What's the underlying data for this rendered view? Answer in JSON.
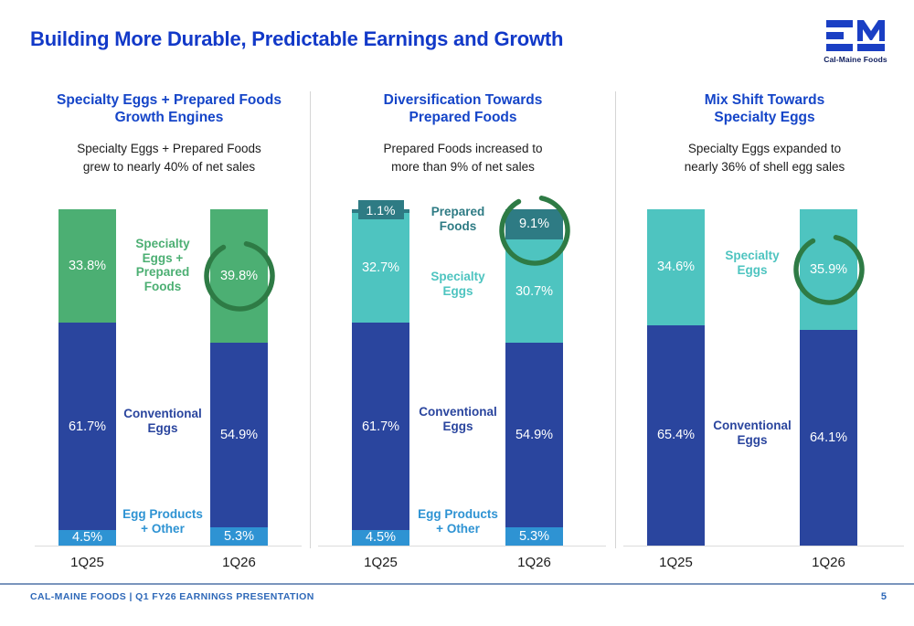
{
  "slide": {
    "title": "Building More Durable, Predictable Earnings and Growth",
    "logo_caption": "Cal-Maine Foods",
    "footer": {
      "left_text": "CAL-MAINE FOODS | Q1 FY26 EARNINGS PRESENTATION",
      "page_number": "5"
    }
  },
  "colors": {
    "accent_blue": "#1239c8",
    "green": "#4caf73",
    "dark_blue": "#2a459e",
    "light_blue": "#2e93d3",
    "teal": "#4ec4c0",
    "dark_teal": "#2e7b84",
    "circle_green": "#2e7b45",
    "footer_blue": "#2e68b8"
  },
  "chart_data": [
    {
      "type": "bar",
      "stacked": true,
      "unit": "%",
      "ylim": [
        0,
        100
      ],
      "grid": false,
      "legend_position": "center-between-bars",
      "title": [
        "Specialty Eggs + Prepared Foods",
        "Growth Engines"
      ],
      "subtitle": [
        "Specialty Eggs + Prepared Foods",
        "grew to nearly 40% of net sales"
      ],
      "categories": [
        "1Q25",
        "1Q26"
      ],
      "series": [
        {
          "name": "Specialty Eggs + Prepared Foods",
          "color": "#4caf73",
          "values": [
            33.8,
            39.8
          ]
        },
        {
          "name": "Conventional Eggs",
          "color": "#2a459e",
          "values": [
            61.7,
            54.9
          ]
        },
        {
          "name": "Egg Products + Other",
          "color": "#2e93d3",
          "values": [
            4.5,
            5.3
          ]
        }
      ],
      "legend": [
        {
          "lines": [
            "Specialty",
            "Eggs +",
            "Prepared",
            "Foods"
          ],
          "color": "#4caf73"
        },
        {
          "lines": [
            "Conventional",
            "Eggs"
          ],
          "color": "#2a459e"
        },
        {
          "lines": [
            "Egg Products",
            "+ Other"
          ],
          "color": "#2e93d3"
        }
      ],
      "annotation": {
        "type": "circle",
        "category": "1Q26",
        "series_index": 0
      }
    },
    {
      "type": "bar",
      "stacked": true,
      "unit": "%",
      "ylim": [
        0,
        100
      ],
      "grid": false,
      "legend_position": "center-between-bars",
      "title": [
        "Diversification Towards",
        "Prepared Foods"
      ],
      "subtitle": [
        "Prepared Foods increased to",
        "more than 9% of net sales"
      ],
      "categories": [
        "1Q25",
        "1Q26"
      ],
      "series": [
        {
          "name": "Prepared Foods",
          "color": "#2e7b84",
          "values": [
            1.1,
            9.1
          ]
        },
        {
          "name": "Specialty Eggs",
          "color": "#4ec4c0",
          "values": [
            32.7,
            30.7
          ]
        },
        {
          "name": "Conventional Eggs",
          "color": "#2a459e",
          "values": [
            61.7,
            54.9
          ]
        },
        {
          "name": "Egg Products + Other",
          "color": "#2e93d3",
          "values": [
            4.5,
            5.3
          ]
        }
      ],
      "legend": [
        {
          "lines": [
            "Prepared",
            "Foods"
          ],
          "color": "#2e7b84"
        },
        {
          "lines": [
            "Specialty",
            "Eggs"
          ],
          "color": "#4ec4c0"
        },
        {
          "lines": [
            "Conventional",
            "Eggs"
          ],
          "color": "#2a459e"
        },
        {
          "lines": [
            "Egg Products",
            "+ Other"
          ],
          "color": "#2e93d3"
        }
      ],
      "annotation": {
        "type": "circle",
        "category": "1Q26",
        "series_index": 0
      }
    },
    {
      "type": "bar",
      "stacked": true,
      "unit": "%",
      "ylim": [
        0,
        100
      ],
      "grid": false,
      "legend_position": "center-between-bars",
      "title": [
        "Mix Shift Towards",
        "Specialty Eggs"
      ],
      "subtitle": [
        "Specialty Eggs expanded to",
        "nearly 36% of shell egg sales"
      ],
      "categories": [
        "1Q25",
        "1Q26"
      ],
      "series": [
        {
          "name": "Specialty Eggs",
          "color": "#4ec4c0",
          "values": [
            34.6,
            35.9
          ]
        },
        {
          "name": "Conventional Eggs",
          "color": "#2a459e",
          "values": [
            65.4,
            64.1
          ]
        }
      ],
      "legend": [
        {
          "lines": [
            "Specialty",
            "Eggs"
          ],
          "color": "#4ec4c0"
        },
        {
          "lines": [
            "Conventional",
            "Eggs"
          ],
          "color": "#2a459e"
        }
      ],
      "annotation": {
        "type": "circle",
        "category": "1Q26",
        "series_index": 0
      }
    }
  ]
}
